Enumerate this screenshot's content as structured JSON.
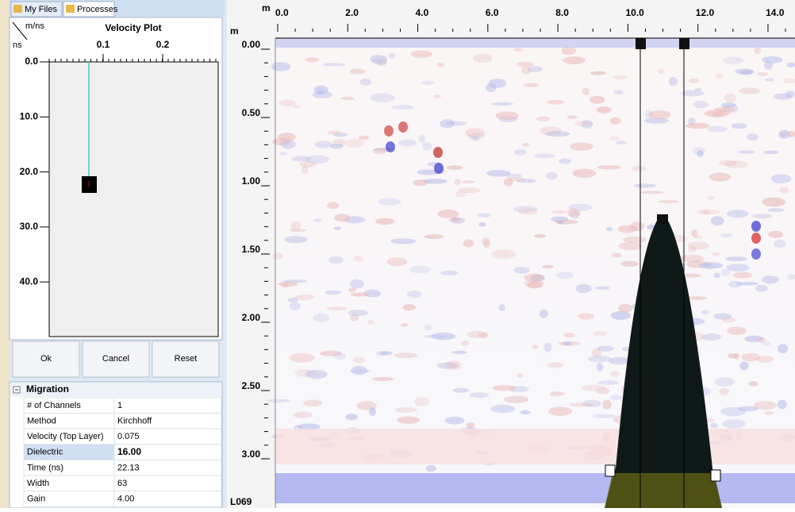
{
  "tabs": [
    "My Files",
    "Processes"
  ],
  "velocity_plot": {
    "title": "Velocity Plot",
    "x_unit": "m/ns",
    "y_unit": "ns",
    "x_ticks": [
      "0.1",
      "0.2"
    ],
    "y_ticks": [
      "0.0",
      "10.0",
      "20.0",
      "30.0",
      "40.0"
    ]
  },
  "buttons": [
    "Ok",
    "Cancel",
    "Reset"
  ],
  "properties": {
    "section": "Migration",
    "rows": [
      [
        "# of Channels",
        "1"
      ],
      [
        "Method",
        "Kirchhoff"
      ],
      [
        "Velocity (Top Layer)",
        "0.075"
      ],
      [
        "Dielectric",
        "16.00"
      ],
      [
        "Time (ns)",
        "22.13"
      ],
      [
        "Width",
        "63"
      ],
      [
        "Gain",
        "4.00"
      ]
    ]
  },
  "radargram": {
    "x_unit": "m",
    "y_unit": "m",
    "x_ticks": [
      "0.0",
      "2.0",
      "4.0",
      "6.0",
      "8.0",
      "10.0",
      "12.0",
      "14.0"
    ],
    "y_ticks": [
      "0.00",
      "0.50",
      "1.00",
      "1.50",
      "2.00",
      "2.50",
      "3.00"
    ],
    "line_label": "L069"
  }
}
